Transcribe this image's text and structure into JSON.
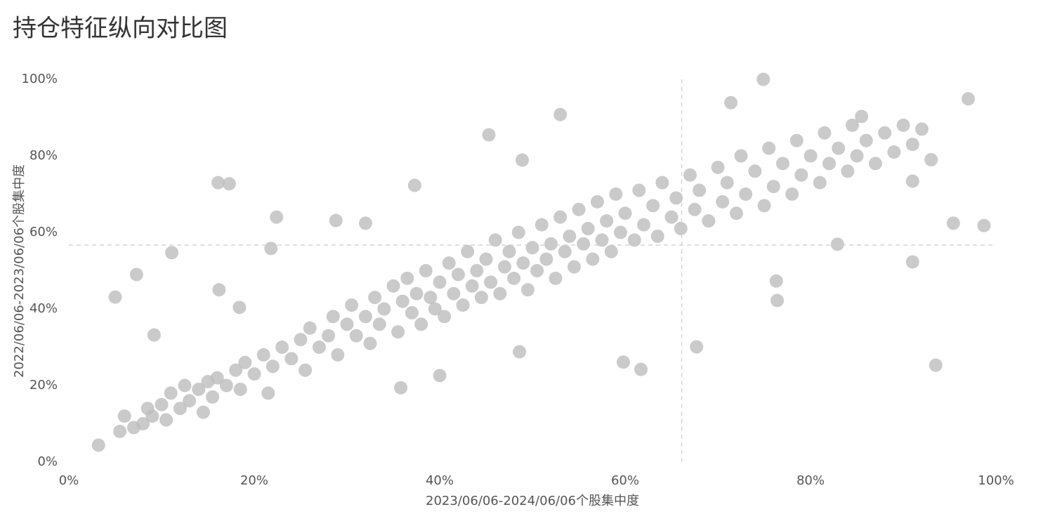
{
  "chart_data": {
    "type": "scatter",
    "title": "持仓特征纵向对比图",
    "x_label": "2023/06/06-2024/06/06个股集中度",
    "y_label": "2022/06/06-2023/06/06个股集中度",
    "color": "#bdbdbd",
    "xlim": [
      0,
      100
    ],
    "ylim": [
      0,
      100
    ],
    "xticks": [
      {
        "value": 0,
        "label": "0%"
      },
      {
        "value": 20,
        "label": "20%"
      },
      {
        "value": 40,
        "label": "40%"
      },
      {
        "value": 60,
        "label": "60%"
      },
      {
        "value": 80,
        "label": "80%"
      },
      {
        "value": 100,
        "label": "100%"
      }
    ],
    "yticks": [
      {
        "value": 0,
        "label": "0%"
      },
      {
        "value": 20,
        "label": "20%"
      },
      {
        "value": 40,
        "label": "40%"
      },
      {
        "value": 60,
        "label": "60%"
      },
      {
        "value": 80,
        "label": "80%"
      },
      {
        "value": 100,
        "label": "100%"
      }
    ],
    "ref_x": 66.1,
    "ref_y": 56.7,
    "x": [
      74.9,
      97.0,
      71.4,
      53.0,
      98.7,
      93.5,
      91.0,
      95.4,
      16.1,
      17.3,
      11.1,
      5.0,
      7.3,
      22.4,
      21.8,
      3.2,
      9.2,
      61.7,
      59.8,
      67.7,
      48.6,
      40.0,
      35.8,
      76.4,
      76.3,
      85.5,
      16.2,
      18.4,
      48.9,
      45.3,
      37.3,
      28.8,
      32.0,
      82.9,
      91.0,
      5.5,
      6,
      7,
      8,
      8.5,
      9,
      10,
      10.5,
      11,
      12,
      12.5,
      13,
      14,
      14.5,
      15,
      15.5,
      16,
      17,
      18,
      18.5,
      19,
      20,
      21,
      21.5,
      22,
      23,
      24,
      25,
      25.5,
      26,
      27,
      28,
      28.5,
      29,
      30,
      30.5,
      31,
      32,
      32.5,
      33,
      33.5,
      34,
      35,
      35.5,
      36,
      36.5,
      37,
      37.5,
      38,
      38.5,
      39,
      39.5,
      40,
      40.5,
      41,
      41.5,
      42,
      42.5,
      43,
      43.5,
      44,
      44.5,
      45,
      45.5,
      46,
      46.5,
      47,
      47.5,
      48,
      48.5,
      49,
      49.5,
      50,
      50.5,
      51,
      51.5,
      52,
      52.5,
      53,
      53.5,
      54,
      54.5,
      55,
      55.5,
      56,
      56.5,
      57,
      57.5,
      58,
      58.5,
      59,
      59.5,
      60,
      61,
      61.5,
      62,
      63,
      63.5,
      64,
      65,
      65.5,
      66,
      67,
      67.5,
      68,
      69,
      70,
      70.5,
      71,
      72,
      72.5,
      73,
      74,
      75,
      75.5,
      76,
      77,
      78,
      78.5,
      79,
      80,
      81,
      81.5,
      82,
      83,
      84,
      84.5,
      85,
      86,
      87,
      88,
      89,
      90,
      91,
      92,
      93
    ],
    "values": [
      100,
      94.9,
      93.9,
      90.8,
      61.8,
      25.3,
      52.3,
      62.4,
      73.0,
      72.7,
      54.7,
      43.1,
      49.0,
      64.0,
      55.8,
      4.4,
      33.2,
      24.2,
      26.1,
      30.1,
      28.8,
      22.6,
      19.4,
      42.2,
      47.3,
      90.3,
      45.0,
      40.4,
      78.9,
      85.5,
      72.3,
      63.1,
      62.4,
      56.9,
      73.4,
      8,
      12,
      9,
      10,
      14,
      12,
      15,
      11,
      18,
      14,
      20,
      16,
      19,
      13,
      21,
      17,
      22,
      20,
      24,
      19,
      26,
      23,
      28,
      18,
      25,
      30,
      27,
      32,
      24,
      35,
      30,
      33,
      38,
      28,
      36,
      41,
      33,
      38,
      31,
      43,
      36,
      40,
      46,
      34,
      42,
      48,
      39,
      44,
      36,
      50,
      43,
      40,
      47,
      38,
      52,
      44,
      49,
      41,
      55,
      46,
      50,
      43,
      53,
      47,
      58,
      44,
      51,
      55,
      48,
      60,
      52,
      45,
      56,
      50,
      62,
      53,
      57,
      48,
      64,
      55,
      59,
      51,
      66,
      57,
      61,
      53,
      68,
      58,
      63,
      55,
      70,
      60,
      65,
      58,
      71,
      62,
      67,
      59,
      73,
      64,
      69,
      61,
      75,
      66,
      71,
      63,
      77,
      68,
      73,
      65,
      80,
      70,
      76,
      67,
      82,
      72,
      78,
      70,
      84,
      75,
      80,
      73,
      86,
      78,
      82,
      76,
      88,
      80,
      84,
      78,
      86,
      81,
      88,
      83,
      87,
      79
    ]
  }
}
